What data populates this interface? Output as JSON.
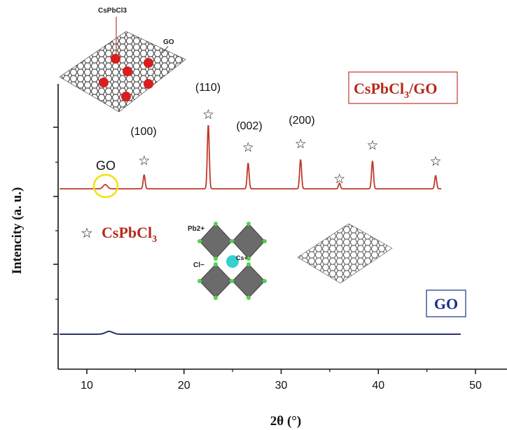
{
  "chart_data": {
    "type": "line",
    "xlabel": "2θ (°)",
    "ylabel": "Intencity (a. u.)",
    "xlim": [
      7,
      52
    ],
    "x_ticks": [
      "10",
      "20",
      "30",
      "40",
      "50"
    ],
    "series": [
      {
        "name": "CsPbCl3/GO",
        "color": "#c0392b",
        "x_range": [
          7.2,
          46.5
        ],
        "peaks": [
          {
            "x": 11.9,
            "height": 0.06
          },
          {
            "x": 15.9,
            "height": 0.2
          },
          {
            "x": 22.5,
            "height": 0.92
          },
          {
            "x": 26.6,
            "height": 0.37
          },
          {
            "x": 32.0,
            "height": 0.42
          },
          {
            "x": 36.0,
            "height": 0.08
          },
          {
            "x": 39.4,
            "height": 0.4
          },
          {
            "x": 45.9,
            "height": 0.19
          }
        ]
      },
      {
        "name": "GO",
        "color": "#2b2f6e",
        "x_range": [
          7.2,
          48.5
        ],
        "peaks": [
          {
            "x": 12.3,
            "height": 0.08
          }
        ]
      }
    ],
    "peak_labels": [
      "(100)",
      "(110)",
      "(002)",
      "(200)"
    ],
    "go_label": "GO",
    "legend_boxes": {
      "composite_main": "CsPbCl",
      "composite_sub": "3",
      "composite_tail": "/GO",
      "go": "GO"
    },
    "star_legend": {
      "symbol": "☆",
      "label_main": "CsPbCl",
      "label_sub": "3"
    },
    "inset_labels": {
      "cspbcl3": "CsPbCl3",
      "go": "GO",
      "pb": "Pb2+",
      "cl": "Cl−",
      "cs": "Cs+"
    },
    "colors": {
      "composite": "#c0392b",
      "go_line": "#2b2f6e",
      "go_box": "#1f2f8a",
      "highlight_circle": "#f2e200",
      "octahedron": "#6b6b6b",
      "cl_atom": "#4cd64c",
      "cs_atom": "#35d0d0",
      "red_particle": "#d81e1e"
    }
  }
}
